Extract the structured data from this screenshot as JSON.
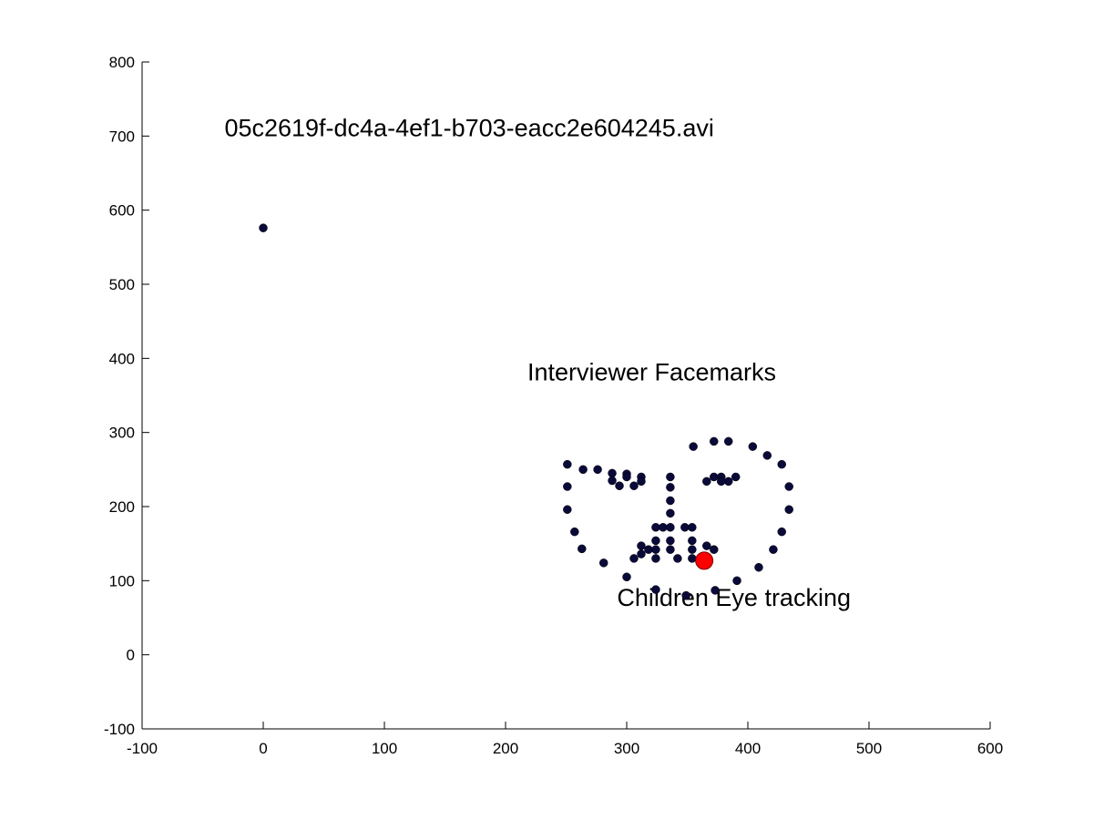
{
  "chart_data": {
    "type": "scatter",
    "title": "",
    "xlabel": "",
    "ylabel": "",
    "xlim": [
      -100,
      600
    ],
    "ylim": [
      -100,
      800
    ],
    "xticks": [
      "-100",
      "0",
      "100",
      "200",
      "300",
      "400",
      "500",
      "600"
    ],
    "yticks": [
      "-100",
      "0",
      "100",
      "200",
      "300",
      "400",
      "500",
      "600",
      "700",
      "800"
    ],
    "grid": false,
    "legend": "none",
    "annotations": [
      {
        "text": "05c2619f-dc4a-4ef1-b703-eacc2e604245.avi",
        "x": -32,
        "y": 700
      },
      {
        "text": "Interviewer Facemarks",
        "x": 218,
        "y": 370
      },
      {
        "text": "Children Eye tracking",
        "x": 292,
        "y": 66
      }
    ],
    "colors": {
      "facemarks": "#0a0a3a",
      "gaze": "#ff0000",
      "axis": "#000000"
    },
    "series": [
      {
        "values": [
          [
            0,
            576
          ],
          [
            251,
            257
          ],
          [
            251,
            227
          ],
          [
            251,
            196
          ],
          [
            257,
            166
          ],
          [
            263,
            143
          ],
          [
            281,
            124
          ],
          [
            300,
            105
          ],
          [
            324,
            88
          ],
          [
            349,
            80
          ],
          [
            373,
            87
          ],
          [
            391,
            100
          ],
          [
            409,
            118
          ],
          [
            421,
            142
          ],
          [
            428,
            166
          ],
          [
            434,
            196
          ],
          [
            434,
            227
          ],
          [
            428,
            257
          ],
          [
            416,
            269
          ],
          [
            404,
            281
          ],
          [
            384,
            288
          ],
          [
            372,
            288
          ],
          [
            355,
            281
          ],
          [
            264,
            250
          ],
          [
            276,
            250
          ],
          [
            288,
            245
          ],
          [
            300,
            244
          ],
          [
            312,
            240
          ],
          [
            288,
            235
          ],
          [
            294,
            228
          ],
          [
            306,
            228
          ],
          [
            312,
            234
          ],
          [
            300,
            240
          ],
          [
            366,
            234
          ],
          [
            372,
            240
          ],
          [
            378,
            240
          ],
          [
            384,
            234
          ],
          [
            390,
            240
          ],
          [
            378,
            234
          ],
          [
            336,
            240
          ],
          [
            336,
            226
          ],
          [
            336,
            208
          ],
          [
            336,
            191
          ],
          [
            324,
            172
          ],
          [
            330,
            172
          ],
          [
            336,
            172
          ],
          [
            348,
            172
          ],
          [
            354,
            172
          ],
          [
            324,
            154
          ],
          [
            336,
            154
          ],
          [
            354,
            154
          ],
          [
            312,
            147
          ],
          [
            318,
            142
          ],
          [
            324,
            142
          ],
          [
            336,
            142
          ],
          [
            354,
            142
          ],
          [
            366,
            147
          ],
          [
            372,
            142
          ],
          [
            306,
            130
          ],
          [
            312,
            136
          ],
          [
            324,
            130
          ],
          [
            342,
            130
          ],
          [
            354,
            130
          ],
          [
            366,
            130
          ]
        ]
      },
      {
        "values": [
          [
            364,
            127
          ]
        ]
      }
    ]
  }
}
